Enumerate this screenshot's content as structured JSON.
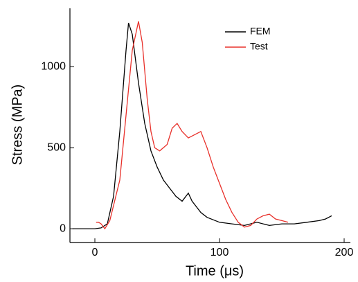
{
  "chart_data": {
    "type": "line",
    "x_label": "Time (μs)",
    "y_label": "Stress (MPa)",
    "xlim": [
      -20,
      205
    ],
    "ylim": [
      -85,
      1360
    ],
    "xticks": [
      0,
      100,
      200
    ],
    "yticks": [
      0,
      500,
      1000
    ],
    "legend": "upper-right",
    "series": [
      {
        "name": "FEM",
        "color": "#000000",
        "x": [
          -18,
          0,
          5,
          10,
          15,
          20,
          25,
          27,
          30,
          35,
          40,
          45,
          50,
          55,
          60,
          65,
          70,
          75,
          78,
          80,
          85,
          90,
          100,
          110,
          120,
          130,
          140,
          150,
          160,
          170,
          180,
          185,
          190
        ],
        "values": [
          0,
          0,
          5,
          30,
          200,
          600,
          1100,
          1270,
          1200,
          900,
          650,
          480,
          380,
          300,
          250,
          200,
          170,
          220,
          170,
          150,
          100,
          70,
          40,
          30,
          20,
          40,
          20,
          30,
          30,
          40,
          50,
          60,
          80
        ]
      },
      {
        "name": "Test",
        "color": "#e8302a",
        "x": [
          1,
          3,
          5,
          8,
          12,
          20,
          25,
          30,
          35,
          38,
          42,
          45,
          48,
          52,
          58,
          62,
          66,
          70,
          75,
          80,
          85,
          90,
          95,
          100,
          105,
          110,
          115,
          120,
          125,
          130,
          135,
          140,
          145,
          150,
          155
        ],
        "values": [
          40,
          40,
          30,
          0,
          50,
          300,
          700,
          1100,
          1280,
          1150,
          800,
          600,
          500,
          480,
          520,
          620,
          650,
          600,
          560,
          580,
          600,
          500,
          380,
          280,
          180,
          100,
          40,
          10,
          20,
          60,
          80,
          90,
          60,
          50,
          40
        ]
      }
    ]
  }
}
